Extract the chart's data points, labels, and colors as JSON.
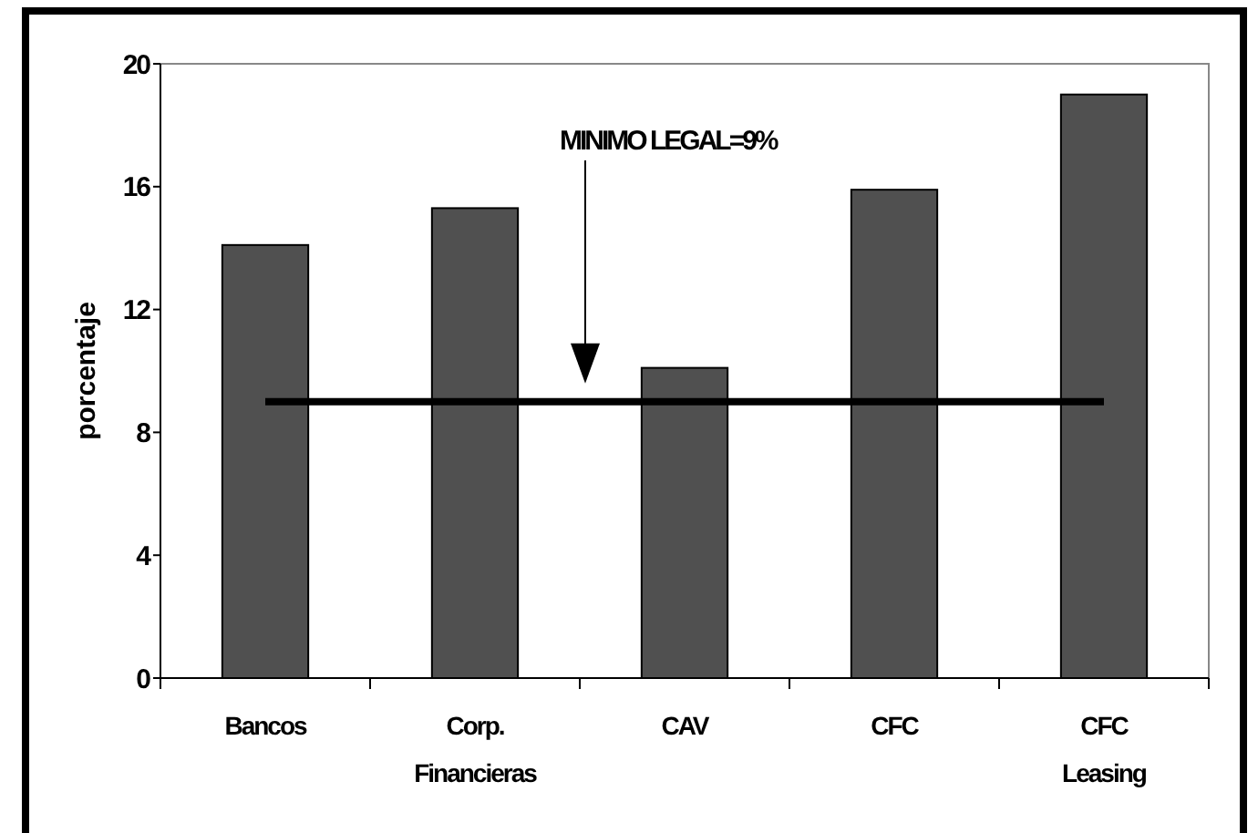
{
  "chart_data": {
    "type": "bar",
    "ylabel": "porcentaje",
    "categories": [
      "Bancos",
      "Corp.\nFinancieras",
      "CAV",
      "CFC",
      "CFC\nLeasing"
    ],
    "values": [
      14.1,
      15.3,
      10.1,
      15.9,
      19
    ],
    "color": "#505050",
    "ylim": [
      0,
      20
    ],
    "yticks": [
      0,
      4,
      8,
      12,
      16,
      20
    ],
    "grid": false,
    "ref_lines": [
      {
        "axis": "y",
        "value": 9,
        "label": "MINIMO LEGAL=9%",
        "color": "#000000"
      }
    ]
  }
}
